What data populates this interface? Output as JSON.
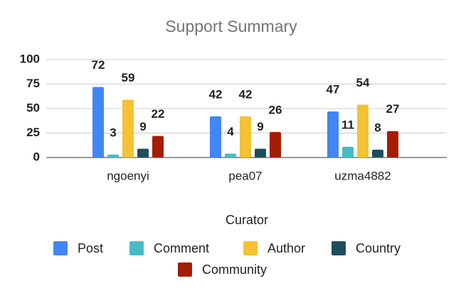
{
  "chart_data": {
    "type": "bar",
    "title": "Support Summary",
    "x_label": "Curator",
    "categories": [
      "ngoenyi",
      "pea07",
      "uzma4882"
    ],
    "series": [
      {
        "name": "Post",
        "color": "#4285f4",
        "values": [
          72,
          42,
          47
        ]
      },
      {
        "name": "Comment",
        "color": "#46bdc6",
        "values": [
          3,
          4,
          11
        ]
      },
      {
        "name": "Author",
        "color": "#f4c232",
        "values": [
          59,
          42,
          54
        ]
      },
      {
        "name": "Country",
        "color": "#1d4e5c",
        "values": [
          9,
          9,
          8
        ]
      },
      {
        "name": "Community",
        "color": "#a61c00",
        "values": [
          22,
          26,
          27
        ]
      }
    ],
    "ylim": [
      0,
      100
    ],
    "yticks": [
      0,
      25,
      50,
      75,
      100
    ],
    "grid": true,
    "legend": "bottom"
  }
}
